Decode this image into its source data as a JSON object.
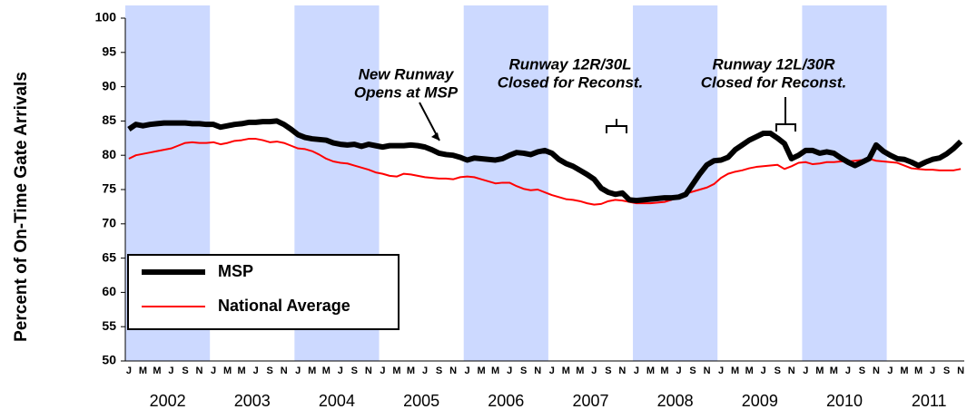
{
  "chart_data": {
    "type": "line",
    "y_label": "Percent of On-Time Gate Arrivals",
    "categories": [
      "J",
      null,
      "M",
      null,
      "M",
      null,
      "J",
      null,
      "S",
      null,
      "N",
      null,
      "J",
      null,
      "M",
      null,
      "M",
      null,
      "J",
      null,
      "S",
      null,
      "N",
      null,
      "J",
      null,
      "M",
      null,
      "M",
      null,
      "J",
      null,
      "S",
      null,
      "N",
      null,
      "J",
      null,
      "M",
      null,
      "M",
      null,
      "J",
      null,
      "S",
      null,
      "N",
      null,
      "J",
      null,
      "M",
      null,
      "M",
      null,
      "J",
      null,
      "S",
      null,
      "N",
      null,
      "J",
      null,
      "M",
      null,
      "M",
      null,
      "J",
      null,
      "S",
      null,
      "N",
      null,
      "J",
      null,
      "M",
      null,
      "M",
      null,
      "J",
      null,
      "S",
      null,
      "N",
      null,
      "J",
      null,
      "M",
      null,
      "M",
      null,
      "J",
      null,
      "S",
      null,
      "N",
      null,
      "J",
      null,
      "M",
      null,
      "M",
      null,
      "J",
      null,
      "S",
      null,
      "N",
      null,
      "J",
      null,
      "M",
      null,
      "M",
      null,
      "J",
      null,
      "S",
      null,
      "N"
    ],
    "years": [
      "2002",
      "2003",
      "2004",
      "2005",
      "2006",
      "2007",
      "2008",
      "2009",
      "2010",
      "2011"
    ],
    "shade_alternate_years": true,
    "shade_color": "#ccd9ff",
    "series": [
      {
        "name": "MSP",
        "color": "#000000",
        "width": 6,
        "values": [
          83.8,
          84.5,
          84.3,
          84.5,
          84.6,
          84.7,
          84.7,
          84.7,
          84.7,
          84.6,
          84.6,
          84.5,
          84.5,
          84.1,
          84.3,
          84.5,
          84.6,
          84.8,
          84.8,
          84.9,
          84.9,
          85.0,
          84.5,
          83.8,
          83.0,
          82.6,
          82.4,
          82.3,
          82.2,
          81.8,
          81.6,
          81.5,
          81.6,
          81.3,
          81.6,
          81.4,
          81.2,
          81.4,
          81.4,
          81.4,
          81.5,
          81.4,
          81.2,
          80.8,
          80.3,
          80.1,
          80.0,
          79.7,
          79.3,
          79.6,
          79.5,
          79.4,
          79.3,
          79.5,
          80.0,
          80.4,
          80.3,
          80.1,
          80.5,
          80.7,
          80.3,
          79.4,
          78.8,
          78.4,
          77.8,
          77.2,
          76.5,
          75.2,
          74.6,
          74.3,
          74.5,
          73.5,
          73.4,
          73.5,
          73.6,
          73.7,
          73.8,
          73.8,
          73.9,
          74.3,
          75.8,
          77.3,
          78.6,
          79.2,
          79.3,
          79.7,
          80.8,
          81.5,
          82.2,
          82.7,
          83.2,
          83.2,
          82.5,
          81.7,
          79.5,
          80.0,
          80.7,
          80.7,
          80.3,
          80.5,
          80.3,
          79.6,
          79.0,
          78.5,
          79.0,
          79.5,
          81.5,
          80.6,
          80.0,
          79.5,
          79.4,
          79.0,
          78.5,
          79.0,
          79.4,
          79.6,
          80.2,
          81.0,
          82.0
        ]
      },
      {
        "name": "National Average",
        "color": "#ff0000",
        "width": 2,
        "values": [
          79.5,
          80.0,
          80.2,
          80.4,
          80.6,
          80.8,
          81.0,
          81.4,
          81.8,
          81.9,
          81.8,
          81.8,
          81.9,
          81.6,
          81.8,
          82.1,
          82.2,
          82.4,
          82.4,
          82.2,
          81.9,
          82.0,
          81.8,
          81.4,
          81.0,
          80.9,
          80.6,
          80.1,
          79.5,
          79.1,
          78.9,
          78.8,
          78.5,
          78.2,
          77.9,
          77.5,
          77.3,
          77.0,
          76.9,
          77.3,
          77.2,
          77.0,
          76.8,
          76.7,
          76.6,
          76.6,
          76.5,
          76.8,
          76.9,
          76.8,
          76.5,
          76.2,
          75.9,
          76.0,
          76.0,
          75.5,
          75.1,
          74.9,
          75.0,
          74.6,
          74.2,
          73.9,
          73.6,
          73.5,
          73.3,
          73.0,
          72.8,
          72.9,
          73.3,
          73.5,
          73.4,
          73.2,
          73.0,
          73.0,
          73.0,
          73.1,
          73.2,
          73.5,
          74.0,
          74.4,
          74.7,
          75.0,
          75.3,
          75.8,
          76.7,
          77.3,
          77.6,
          77.8,
          78.1,
          78.3,
          78.4,
          78.5,
          78.6,
          78.0,
          78.4,
          78.9,
          79.0,
          78.7,
          78.8,
          79.0,
          79.0,
          79.1,
          79.1,
          79.2,
          79.3,
          79.5,
          79.2,
          79.1,
          79.0,
          78.9,
          78.5,
          78.1,
          78.0,
          77.9,
          77.9,
          77.8,
          77.8,
          77.8,
          78.0
        ]
      }
    ],
    "ylim": [
      50,
      100
    ],
    "yticks": [
      50,
      55,
      60,
      65,
      70,
      75,
      80,
      85,
      90,
      95,
      100
    ],
    "annotations": [
      {
        "lines": [
          "New Runway",
          "Opens at MSP"
        ]
      },
      {
        "lines": [
          "Runway 12R/30L",
          "Closed for Reconst."
        ]
      },
      {
        "lines": [
          "Runway 12L/30R",
          "Closed for Reconst."
        ]
      }
    ]
  }
}
